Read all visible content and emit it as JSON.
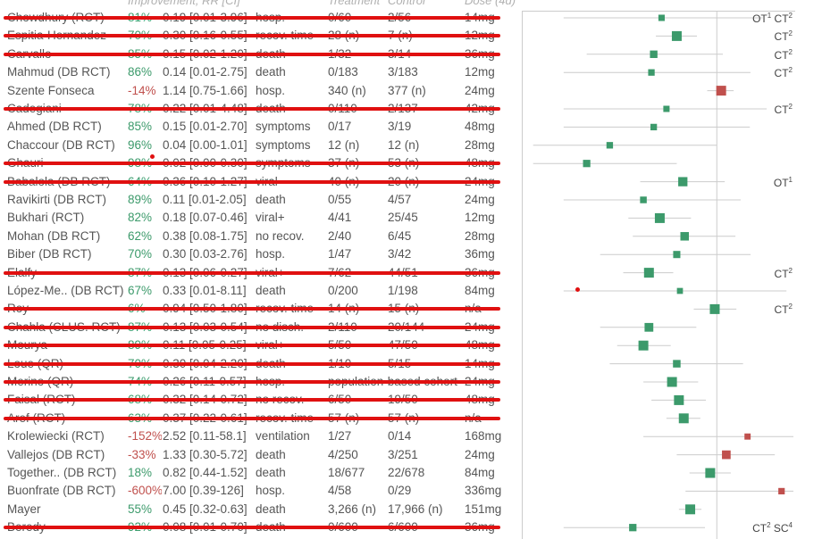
{
  "headers": {
    "improvement": "Improvement, RR [CI]",
    "treatment": "Treatment",
    "control": "Control",
    "dose": "Dose (4d)"
  },
  "chart_data": {
    "type": "forest",
    "title": "",
    "xlabel": "",
    "ylabel": "",
    "log_scale": true,
    "xlim": [
      0.003,
      10
    ],
    "reference_line": 1,
    "colors": {
      "positive": "#3c9a6b",
      "negative": "#c0504d",
      "strike": "#e01010",
      "ci": "#cccccc",
      "axis": "#cccccc"
    },
    "rows": [
      {
        "study": "Chowdhury (RCT)",
        "imp": "81%",
        "rr": 0.19,
        "lo": 0.01,
        "hi": 3.96,
        "ci": "0.19 [0.01-3.96]",
        "outcome": "hosp.",
        "trt": "0/60",
        "ctl": "2/56",
        "dose": "14mg",
        "struck": true,
        "badge": "OT1 CT2"
      },
      {
        "study": "Espitia-Hernandez",
        "imp": "70%",
        "rr": 0.3,
        "lo": 0.16,
        "hi": 0.55,
        "ci": "0.30 [0.16-0.55]",
        "outcome": "recov. time",
        "trt": "28 (n)",
        "ctl": "7 (n)",
        "dose": "12mg",
        "struck": true,
        "badge": "CT2"
      },
      {
        "study": "Carvallo",
        "imp": "85%",
        "rr": 0.15,
        "lo": 0.02,
        "hi": 1.2,
        "ci": "0.15 [0.02-1.20]",
        "outcome": "death",
        "trt": "1/32",
        "ctl": "3/14",
        "dose": "36mg",
        "struck": true,
        "badge": "CT2"
      },
      {
        "study": "Mahmud (DB RCT)",
        "imp": "86%",
        "rr": 0.14,
        "lo": 0.01,
        "hi": 2.75,
        "ci": "0.14 [0.01-2.75]",
        "outcome": "death",
        "trt": "0/183",
        "ctl": "3/183",
        "dose": "12mg",
        "struck": false,
        "badge": "CT2"
      },
      {
        "study": "Szente Fonseca",
        "imp": "-14%",
        "rr": 1.14,
        "lo": 0.75,
        "hi": 1.66,
        "ci": "1.14 [0.75-1.66]",
        "outcome": "hosp.",
        "trt": "340 (n)",
        "ctl": "377 (n)",
        "dose": "24mg",
        "struck": false,
        "badge": ""
      },
      {
        "study": "Cadegiani",
        "imp": "78%",
        "rr": 0.22,
        "lo": 0.01,
        "hi": 4.48,
        "ci": "0.22 [0.01-4.48]",
        "outcome": "death",
        "trt": "0/110",
        "ctl": "2/137",
        "dose": "42mg",
        "struck": true,
        "badge": "CT2"
      },
      {
        "study": "Ahmed (DB RCT)",
        "imp": "85%",
        "rr": 0.15,
        "lo": 0.01,
        "hi": 2.7,
        "ci": "0.15 [0.01-2.70]",
        "outcome": "symptoms",
        "trt": "0/17",
        "ctl": "3/19",
        "dose": "48mg",
        "struck": false,
        "badge": ""
      },
      {
        "study": "Chaccour (DB RCT)",
        "imp": "96%",
        "rr": 0.04,
        "lo": 0.004,
        "hi": 1.01,
        "ci": "0.04 [0.00-1.01]",
        "outcome": "symptoms",
        "trt": "12 (n)",
        "ctl": "12 (n)",
        "dose": "28mg",
        "struck": false,
        "badge": ""
      },
      {
        "study": "Ghauri",
        "imp": "98%",
        "rr": 0.02,
        "lo": 0.004,
        "hi": 0.3,
        "ci": "0.02 [0.00-0.30]",
        "outcome": "symptoms",
        "trt": "37 (n)",
        "ctl": "53 (n)",
        "dose": "48mg",
        "struck": true,
        "badge": ""
      },
      {
        "study": "Babalola (DB RCT)",
        "imp": "64%",
        "rr": 0.36,
        "lo": 0.1,
        "hi": 1.27,
        "ci": "0.36 [0.10-1.27]",
        "outcome": "viral-",
        "trt": "40 (n)",
        "ctl": "20 (n)",
        "dose": "24mg",
        "struck": true,
        "badge": "OT1"
      },
      {
        "study": "Ravikirti (DB RCT)",
        "imp": "89%",
        "rr": 0.11,
        "lo": 0.01,
        "hi": 2.05,
        "ci": "0.11 [0.01-2.05]",
        "outcome": "death",
        "trt": "0/55",
        "ctl": "4/57",
        "dose": "24mg",
        "struck": false,
        "badge": ""
      },
      {
        "study": "Bukhari (RCT)",
        "imp": "82%",
        "rr": 0.18,
        "lo": 0.07,
        "hi": 0.46,
        "ci": "0.18 [0.07-0.46]",
        "outcome": "viral+",
        "trt": "4/41",
        "ctl": "25/45",
        "dose": "12mg",
        "struck": false,
        "badge": ""
      },
      {
        "study": "Mohan (DB RCT)",
        "imp": "62%",
        "rr": 0.38,
        "lo": 0.08,
        "hi": 1.75,
        "ci": "0.38 [0.08-1.75]",
        "outcome": "no recov.",
        "trt": "2/40",
        "ctl": "6/45",
        "dose": "28mg",
        "struck": false,
        "badge": ""
      },
      {
        "study": "Biber (DB RCT)",
        "imp": "70%",
        "rr": 0.3,
        "lo": 0.03,
        "hi": 2.76,
        "ci": "0.30 [0.03-2.76]",
        "outcome": "hosp.",
        "trt": "1/47",
        "ctl": "3/42",
        "dose": "36mg",
        "struck": false,
        "badge": ""
      },
      {
        "study": "Elalfy",
        "imp": "87%",
        "rr": 0.13,
        "lo": 0.06,
        "hi": 0.27,
        "ci": "0.13 [0.06-0.27]",
        "outcome": "viral+",
        "trt": "7/62",
        "ctl": "44/51",
        "dose": "36mg",
        "struck": true,
        "badge": "CT2"
      },
      {
        "study": "López-Me.. (DB RCT)",
        "imp": "67%",
        "rr": 0.33,
        "lo": 0.01,
        "hi": 8.11,
        "ci": "0.33 [0.01-8.11]",
        "outcome": "death",
        "trt": "0/200",
        "ctl": "1/198",
        "dose": "84mg",
        "struck": false,
        "badge": ""
      },
      {
        "study": "Roy",
        "imp": "6%",
        "rr": 0.94,
        "lo": 0.5,
        "hi": 1.8,
        "ci": "0.94 [0.50-1.80]",
        "outcome": "recov. time",
        "trt": "14 (n)",
        "ctl": "15 (n)",
        "dose": "n/a",
        "struck": true,
        "badge": "CT2"
      },
      {
        "study": "Chahla (CLUS. RCT)",
        "imp": "87%",
        "rr": 0.13,
        "lo": 0.03,
        "hi": 0.54,
        "ci": "0.13 [0.03-0.54]",
        "outcome": "no disch.",
        "trt": "2/110",
        "ctl": "20/144",
        "dose": "24mg",
        "struck": true,
        "badge": ""
      },
      {
        "study": "Mourya",
        "imp": "89%",
        "rr": 0.11,
        "lo": 0.05,
        "hi": 0.25,
        "ci": "0.11 [0.05-0.25]",
        "outcome": "viral+",
        "trt": "5/50",
        "ctl": "47/50",
        "dose": "48mg",
        "struck": true,
        "badge": ""
      },
      {
        "study": "Loue (QR)",
        "imp": "70%",
        "rr": 0.3,
        "lo": 0.04,
        "hi": 2.2,
        "ci": "0.30 [0.04-2.20]",
        "outcome": "death",
        "trt": "1/10",
        "ctl": "5/15",
        "dose": "14mg",
        "struck": true,
        "badge": ""
      },
      {
        "study": "Merino (QR)",
        "imp": "74%",
        "rr": 0.26,
        "lo": 0.11,
        "hi": 0.57,
        "ci": "0.26 [0.11-0.57]",
        "outcome": "hosp.",
        "trt": "population-based cohort",
        "ctl": "",
        "dose": "24mg",
        "struck": true,
        "badge": ""
      },
      {
        "study": "Faisal (RCT)",
        "imp": "68%",
        "rr": 0.32,
        "lo": 0.14,
        "hi": 0.72,
        "ci": "0.32 [0.14-0.72]",
        "outcome": "no recov.",
        "trt": "6/50",
        "ctl": "19/50",
        "dose": "48mg",
        "struck": true,
        "badge": ""
      },
      {
        "study": "Aref (RCT)",
        "imp": "63%",
        "rr": 0.37,
        "lo": 0.22,
        "hi": 0.61,
        "ci": "0.37 [0.22-0.61]",
        "outcome": "recov. time",
        "trt": "57 (n)",
        "ctl": "57 (n)",
        "dose": "n/a",
        "struck": true,
        "badge": ""
      },
      {
        "study": "Krolewiecki (RCT)",
        "imp": "-152%",
        "rr": 2.52,
        "lo": 0.11,
        "hi": 58.1,
        "ci": "2.52 [0.11-58.1]",
        "outcome": "ventilation",
        "trt": "1/27",
        "ctl": "0/14",
        "dose": "168mg",
        "struck": false,
        "badge": ""
      },
      {
        "study": "Vallejos (DB RCT)",
        "imp": "-33%",
        "rr": 1.33,
        "lo": 0.3,
        "hi": 5.72,
        "ci": "1.33 [0.30-5.72]",
        "outcome": "death",
        "trt": "4/250",
        "ctl": "3/251",
        "dose": "24mg",
        "struck": false,
        "badge": ""
      },
      {
        "study": "Together.. (DB RCT)",
        "imp": "18%",
        "rr": 0.82,
        "lo": 0.44,
        "hi": 1.52,
        "ci": "0.82 [0.44-1.52]",
        "outcome": "death",
        "trt": "18/677",
        "ctl": "22/678",
        "dose": "84mg",
        "struck": false,
        "badge": ""
      },
      {
        "study": "Buonfrate (DB RCT)",
        "imp": "-600%",
        "rr": 7.0,
        "lo": 0.39,
        "hi": 126,
        "ci": "7.00 [0.39-126]",
        "outcome": "hosp.",
        "trt": "4/58",
        "ctl": "0/29",
        "dose": "336mg",
        "struck": false,
        "badge": ""
      },
      {
        "study": "Mayer",
        "imp": "55%",
        "rr": 0.45,
        "lo": 0.32,
        "hi": 0.63,
        "ci": "0.45 [0.32-0.63]",
        "outcome": "death",
        "trt": "3,266 (n)",
        "ctl": "17,966 (n)",
        "dose": "151mg",
        "struck": false,
        "badge": ""
      },
      {
        "study": "Beredy",
        "imp": "92%",
        "rr": 0.08,
        "lo": 0.01,
        "hi": 0.7,
        "ci": "0.08 [0.01-0.70]",
        "outcome": "death",
        "trt": "0/600",
        "ctl": "6/600",
        "dose": "36mg",
        "struck": true,
        "badge": "CT2 SC4"
      }
    ]
  }
}
